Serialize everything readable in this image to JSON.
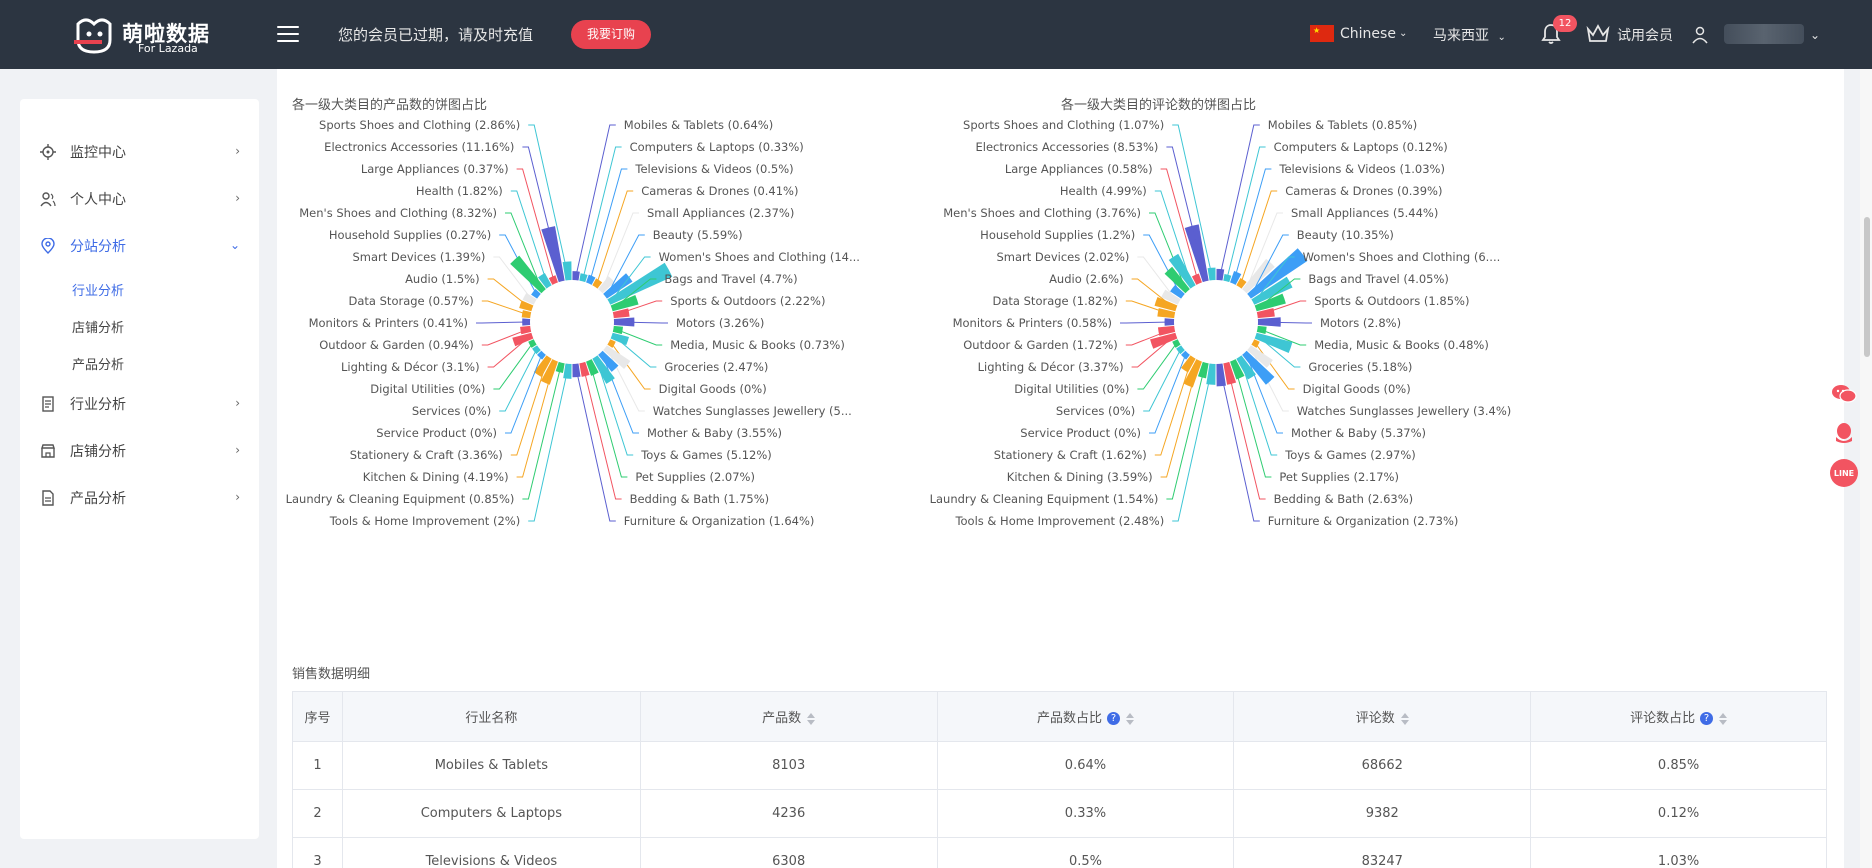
{
  "header": {
    "logo_name": "萌啦数据",
    "logo_sub": "For Lazada",
    "notice": "您的会员已过期，请及时充值",
    "subscribe_label": "我要订购",
    "language": "Chinese",
    "region": "马来西亚",
    "notification_count": "12",
    "trial_label": "试用会员"
  },
  "sidebar": {
    "items": [
      {
        "label": "监控中心",
        "icon": "monitor-icon"
      },
      {
        "label": "个人中心",
        "icon": "user-icon"
      },
      {
        "label": "分站分析",
        "icon": "location-icon"
      },
      {
        "label": "行业分析",
        "icon": "document-icon"
      },
      {
        "label": "店铺分析",
        "icon": "store-icon"
      },
      {
        "label": "产品分析",
        "icon": "product-icon"
      }
    ],
    "subitems": [
      "行业分析",
      "店铺分析",
      "产品分析"
    ]
  },
  "charts": {
    "left_title": "各一级大类目的产品数的饼图占比",
    "right_title": "各一级大类目的评论数的饼图占比"
  },
  "chart_data": [
    {
      "type": "pie",
      "title": "各一级大类目的产品数的饼图占比",
      "categories": [
        "Mobiles & Tablets",
        "Computers & Laptops",
        "Televisions & Videos",
        "Cameras & Drones",
        "Small Appliances",
        "Beauty",
        "Women's Shoes and Clothing",
        "Bags and Travel",
        "Sports & Outdoors",
        "Motors",
        "Media, Music & Books",
        "Groceries",
        "Digital Goods",
        "Watches Sunglasses Jewellery",
        "Mother & Baby",
        "Toys & Games",
        "Pet Supplies",
        "Bedding & Bath",
        "Furniture & Organization",
        "Tools & Home Improvement",
        "Laundry & Cleaning Equipment",
        "Kitchen & Dining",
        "Stationery & Craft",
        "Service Product",
        "Services",
        "Digital Utilities",
        "Lighting & Décor",
        "Outdoor & Garden",
        "Monitors & Printers",
        "Data Storage",
        "Audio",
        "Smart Devices",
        "Household Supplies",
        "Men's Shoes and Clothing",
        "Health",
        "Large Appliances",
        "Electronics Accessories",
        "Sports Shoes and Clothing"
      ],
      "labels": [
        "Mobiles & Tablets (0.64%)",
        "Computers & Laptops (0.33%)",
        "Televisions & Videos (0.5%)",
        "Cameras & Drones (0.41%)",
        "Small Appliances (2.37%)",
        "Beauty (5.59%)",
        "Women's Shoes and Clothing (14...",
        "Bags and Travel (4.7%)",
        "Sports & Outdoors (2.22%)",
        "Motors (3.26%)",
        "Media, Music & Books (0.73%)",
        "Groceries (2.47%)",
        "Digital Goods (0%)",
        "Watches Sunglasses Jewellery (5...",
        "Mother & Baby (3.55%)",
        "Toys & Games (5.12%)",
        "Pet Supplies (2.07%)",
        "Bedding & Bath (1.75%)",
        "Furniture & Organization (1.64%)",
        "Tools & Home Improvement (2%)",
        "Laundry & Cleaning Equipment (0.85%)",
        "Kitchen & Dining (4.19%)",
        "Stationery & Craft (3.36%)",
        "Service Product (0%)",
        "Services (0%)",
        "Digital Utilities (0%)",
        "Lighting & Décor (3.1%)",
        "Outdoor & Garden (0.94%)",
        "Monitors & Printers (0.41%)",
        "Data Storage (0.57%)",
        "Audio (1.5%)",
        "Smart Devices (1.39%)",
        "Household Supplies (0.27%)",
        "Men's Shoes and Clothing (8.32%)",
        "Health (1.82%)",
        "Large Appliances (0.37%)",
        "Electronics Accessories (11.16%)",
        "Sports Shoes and Clothing (2.86%)"
      ],
      "values": [
        0.64,
        0.33,
        0.5,
        0.41,
        2.37,
        5.59,
        14,
        4.7,
        2.22,
        3.26,
        0.73,
        2.47,
        0,
        5,
        3.55,
        5.12,
        2.07,
        1.75,
        1.64,
        2,
        0.85,
        4.19,
        3.36,
        0,
        0,
        0,
        3.1,
        0.94,
        0.41,
        0.57,
        1.5,
        1.39,
        0.27,
        8.32,
        1.82,
        0.37,
        11.16,
        2.86
      ]
    },
    {
      "type": "pie",
      "title": "各一级大类目的评论数的饼图占比",
      "categories": [
        "Mobiles & Tablets",
        "Computers & Laptops",
        "Televisions & Videos",
        "Cameras & Drones",
        "Small Appliances",
        "Beauty",
        "Women's Shoes and Clothing",
        "Bags and Travel",
        "Sports & Outdoors",
        "Motors",
        "Media, Music & Books",
        "Groceries",
        "Digital Goods",
        "Watches Sunglasses Jewellery",
        "Mother & Baby",
        "Toys & Games",
        "Pet Supplies",
        "Bedding & Bath",
        "Furniture & Organization",
        "Tools & Home Improvement",
        "Laundry & Cleaning Equipment",
        "Kitchen & Dining",
        "Stationery & Craft",
        "Service Product",
        "Services",
        "Digital Utilities",
        "Lighting & Décor",
        "Outdoor & Garden",
        "Monitors & Printers",
        "Data Storage",
        "Audio",
        "Smart Devices",
        "Household Supplies",
        "Men's Shoes and Clothing",
        "Health",
        "Large Appliances",
        "Electronics Accessories",
        "Sports Shoes and Clothing"
      ],
      "labels": [
        "Mobiles & Tablets (0.85%)",
        "Computers & Laptops (0.12%)",
        "Televisions & Videos (1.03%)",
        "Cameras & Drones (0.39%)",
        "Small Appliances (5.44%)",
        "Beauty (10.35%)",
        "Women's Shoes and Clothing (6....",
        "Bags and Travel (4.05%)",
        "Sports & Outdoors (1.85%)",
        "Motors (2.8%)",
        "Media, Music & Books (0.48%)",
        "Groceries (5.18%)",
        "Digital Goods (0%)",
        "Watches Sunglasses Jewellery (3.4%)",
        "Mother & Baby (5.37%)",
        "Toys & Games (2.97%)",
        "Pet Supplies (2.17%)",
        "Bedding & Bath (2.63%)",
        "Furniture & Organization (2.73%)",
        "Tools & Home Improvement (2.48%)",
        "Laundry & Cleaning Equipment (1.54%)",
        "Kitchen & Dining (3.59%)",
        "Stationery & Craft (1.62%)",
        "Service Product (0%)",
        "Services (0%)",
        "Digital Utilities (0%)",
        "Lighting & Décor (3.37%)",
        "Outdoor & Garden (1.72%)",
        "Monitors & Printers (0.58%)",
        "Data Storage (1.82%)",
        "Audio (2.6%)",
        "Smart Devices (2.02%)",
        "Household Supplies (1.2%)",
        "Men's Shoes and Clothing (3.76%)",
        "Health (4.99%)",
        "Large Appliances (0.58%)",
        "Electronics Accessories (8.53%)",
        "Sports Shoes and Clothing (1.07%)"
      ],
      "values": [
        0.85,
        0.12,
        1.03,
        0.39,
        5.44,
        10.35,
        6,
        4.05,
        1.85,
        2.8,
        0.48,
        5.18,
        0,
        3.4,
        5.37,
        2.97,
        2.17,
        2.63,
        2.73,
        2.48,
        1.54,
        3.59,
        1.62,
        0,
        0,
        0,
        3.37,
        1.72,
        0.58,
        1.82,
        2.6,
        2.02,
        1.2,
        3.76,
        4.99,
        0.58,
        8.53,
        1.07
      ]
    }
  ],
  "palette": [
    "#5b5fd0",
    "#3ec6d4",
    "#3d9ef6",
    "#f5a623",
    "#e8e8e8",
    "#3d9ef6",
    "#3ec6d4",
    "#2ecc71",
    "#f25461",
    "#5b5fd0",
    "#2ecc71",
    "#3ec6d4",
    "#f5a623",
    "#e8e8e8",
    "#3d9ef6",
    "#3ec6d4",
    "#2ecc71",
    "#f25461",
    "#5b5fd0",
    "#3ec6d4",
    "#2ecc71",
    "#f5a623",
    "#f5a623",
    "#3d9ef6",
    "#3ec6d4",
    "#2ecc71",
    "#f25461",
    "#f25461",
    "#5b5fd0",
    "#f5a623",
    "#f5a623",
    "#e8e8e8",
    "#3d9ef6",
    "#2ecc71",
    "#3ec6d4",
    "#f25461",
    "#5b5fd0",
    "#3ec6d4"
  ],
  "table": {
    "section_title": "销售数据明细",
    "headers": [
      "序号",
      "行业名称",
      "产品数",
      "产品数占比",
      "评论数",
      "评论数占比"
    ],
    "rows": [
      {
        "idx": "1",
        "name": "Mobiles & Tablets",
        "products": "8103",
        "product_pct": "0.64%",
        "reviews": "68662",
        "review_pct": "0.85%"
      },
      {
        "idx": "2",
        "name": "Computers & Laptops",
        "products": "4236",
        "product_pct": "0.33%",
        "reviews": "9382",
        "review_pct": "0.12%"
      },
      {
        "idx": "3",
        "name": "Televisions & Videos",
        "products": "6308",
        "product_pct": "0.5%",
        "reviews": "83247",
        "review_pct": "1.03%"
      }
    ]
  },
  "float_icons": [
    "wechat-icon",
    "qq-icon",
    "line-icon"
  ]
}
